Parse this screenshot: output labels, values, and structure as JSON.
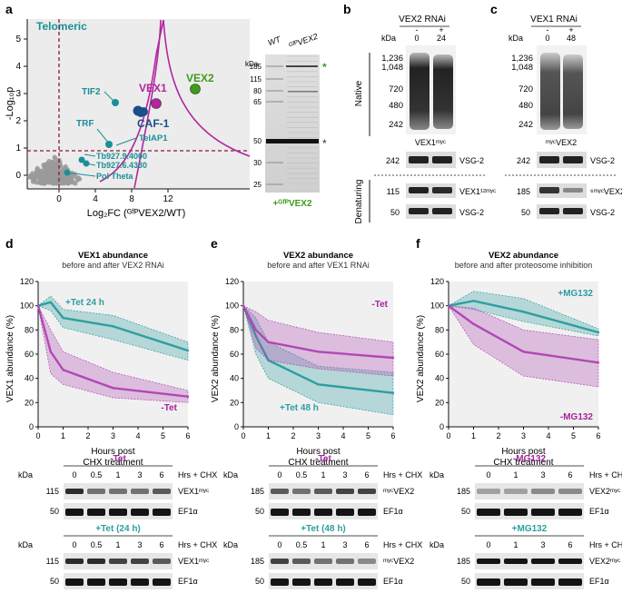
{
  "panels": {
    "a": "a",
    "b": "b",
    "c": "c",
    "d": "d",
    "e": "e",
    "f": "f"
  },
  "volcano": {
    "corner_label": "Telomeric",
    "ylabel": "-Log₁₀p",
    "xlabel": "Log₂FC (ᴳᶠᴾVEX2/WT)",
    "yticks": [
      "0",
      "1",
      "2",
      "3",
      "4",
      "5"
    ],
    "xticks": [
      "0",
      "4",
      "8",
      "12"
    ],
    "labels": {
      "vex1": "VEX1",
      "vex2": "VEX2",
      "caf1": "CAF-1",
      "tif2": "TIF2",
      "trf": "TRF",
      "telap1": "TelAP1",
      "tb4000": "Tb927.9.4000",
      "tb4330": "Tb927.6.4330",
      "polt": "Pol Theta"
    },
    "colors": {
      "teal": "#1a8f96",
      "purple": "#b0279f",
      "green": "#3f9b1a",
      "blue": "#1a4f8a",
      "grey": "#9a9a9a",
      "panel_bg": "#ececec",
      "red": "#8b1a3b"
    }
  },
  "gel": {
    "lane_wt": "WT",
    "lane_vex2": "ᴳᶠᴾVEX2",
    "kda": "kDa",
    "markers": [
      "185",
      "115",
      "80",
      "65",
      "50",
      "30",
      "25"
    ],
    "star1": "*",
    "star2": "*",
    "caption": "+ᴳᶠᴾVEX2"
  },
  "panel_b": {
    "title": "VEX2 RNAi",
    "kda": "kDa",
    "lane1_sign": "-",
    "lane1_time": "0",
    "lane2_sign": "+",
    "lane2_time": "24",
    "markers": [
      "1,236",
      "1,048",
      "720",
      "480",
      "242"
    ],
    "native": "Native",
    "denaturing": "Denaturing",
    "sub_native": "VEX1ᵐʸᶜ",
    "native_marker": "242",
    "native_band": "VSG-2",
    "den_marker1": "115",
    "den_band1": "VEX1¹²ᵐʸᶜ",
    "den_marker2": "50",
    "den_band2": "VSG-2"
  },
  "panel_c": {
    "title": "VEX1 RNAi",
    "kda": "kDa",
    "lane1_sign": "-",
    "lane1_time": "0",
    "lane2_sign": "+",
    "lane2_time": "48",
    "markers": [
      "1,236",
      "1,048",
      "720",
      "480",
      "242"
    ],
    "sub_native": "ᵐʸᶜVEX2",
    "native_marker": "242",
    "native_band": "VSG-2",
    "den_marker1": "185",
    "den_band1": "⁶ᵐʸᶜVEX2",
    "den_marker2": "50",
    "den_band2": "VSG-2"
  },
  "chart_data": [
    {
      "type": "line",
      "title": "VEX1 abundance",
      "subtitle": "before and after VEX2 RNAi",
      "xlabel": "Hours post CHX treatment",
      "xlabel1": "Hours post",
      "xlabel2": "CHX treatment",
      "ylabel": "VEX1 abundance (%)",
      "ylim": [
        0,
        120
      ],
      "xlim": [
        0,
        6
      ],
      "yticks": [
        "0",
        "20",
        "40",
        "60",
        "80",
        "100",
        "120"
      ],
      "xticks": [
        "0",
        "1",
        "2",
        "3",
        "4",
        "5",
        "6"
      ],
      "series": [
        {
          "name": "+Tet 24 h",
          "color": "#2e9ea0",
          "x": [
            0,
            0.5,
            1,
            3,
            6
          ],
          "values": [
            100,
            103,
            90,
            83,
            63
          ],
          "lower": [
            100,
            96,
            82,
            72,
            55
          ],
          "upper": [
            100,
            108,
            97,
            92,
            70
          ]
        },
        {
          "name": "-Tet",
          "color": "#b148b4",
          "x": [
            0,
            0.5,
            1,
            3,
            6
          ],
          "values": [
            100,
            62,
            47,
            32,
            25
          ],
          "lower": [
            100,
            44,
            35,
            24,
            20
          ],
          "upper": [
            100,
            80,
            62,
            45,
            30
          ]
        }
      ]
    },
    {
      "type": "line",
      "title": "VEX2 abundance",
      "subtitle": "before and after VEX1 RNAi",
      "xlabel": "Hours post CHX treatment",
      "xlabel1": "Hours post",
      "xlabel2": "CHX treatment",
      "ylabel": "VEX2 abundance (%)",
      "ylim": [
        0,
        120
      ],
      "xlim": [
        0,
        6
      ],
      "yticks": [
        "0",
        "20",
        "40",
        "60",
        "80",
        "100",
        "120"
      ],
      "xticks": [
        "0",
        "1",
        "2",
        "3",
        "4",
        "5",
        "6"
      ],
      "series": [
        {
          "name": "+Tet 48 h",
          "color": "#2e9ea0",
          "x": [
            0,
            0.5,
            1,
            3,
            6
          ],
          "values": [
            100,
            75,
            55,
            35,
            28
          ],
          "lower": [
            100,
            60,
            40,
            20,
            10
          ],
          "upper": [
            100,
            90,
            70,
            50,
            45
          ]
        },
        {
          "name": "-Tet",
          "color": "#b148b4",
          "x": [
            0,
            0.5,
            1,
            3,
            6
          ],
          "values": [
            100,
            80,
            70,
            62,
            57
          ],
          "lower": [
            100,
            65,
            55,
            48,
            42
          ],
          "upper": [
            100,
            95,
            88,
            78,
            70
          ]
        }
      ]
    },
    {
      "type": "line",
      "title": "VEX2 abundance",
      "subtitle": "before and after proteosome inhibition",
      "xlabel": "Hours post CHX treatment",
      "xlabel1": "Hours post",
      "xlabel2": "CHX treatment",
      "ylabel": "VEX2 abundance (%)",
      "ylim": [
        0,
        120
      ],
      "xlim": [
        0,
        6
      ],
      "yticks": [
        "0",
        "20",
        "40",
        "60",
        "80",
        "100",
        "120"
      ],
      "xticks": [
        "0",
        "1",
        "2",
        "3",
        "4",
        "5",
        "6"
      ],
      "series": [
        {
          "name": "+MG132",
          "color": "#2e9ea0",
          "x": [
            0,
            1,
            3,
            6
          ],
          "values": [
            100,
            104,
            95,
            78
          ],
          "lower": [
            100,
            97,
            87,
            75
          ],
          "upper": [
            100,
            112,
            106,
            81
          ]
        },
        {
          "name": "-MG132",
          "color": "#b148b4",
          "x": [
            0,
            1,
            3,
            6
          ],
          "values": [
            100,
            85,
            62,
            53
          ],
          "lower": [
            100,
            68,
            42,
            33
          ],
          "upper": [
            100,
            98,
            80,
            72
          ]
        }
      ]
    }
  ],
  "blots": {
    "d": {
      "top": {
        "label": "-Tet",
        "kda": "kDa",
        "lanes": [
          "0",
          "0.5",
          "1",
          "3",
          "6"
        ],
        "hrs": "Hrs + CHX",
        "m1": "115",
        "m2": "50",
        "band1": "VEX1ᵐʸᶜ",
        "band2": "EF1α"
      },
      "bottom": {
        "label": "+Tet (24 h)",
        "kda": "kDa",
        "lanes": [
          "0",
          "0.5",
          "1",
          "3",
          "6"
        ],
        "hrs": "Hrs + CHX",
        "m1": "115",
        "m2": "50",
        "band1": "VEX1ᵐʸᶜ",
        "band2": "EF1α"
      }
    },
    "e": {
      "top": {
        "label": "-Tet",
        "kda": "kDa",
        "lanes": [
          "0",
          "0.5",
          "1",
          "3",
          "6"
        ],
        "hrs": "Hrs + CHX",
        "m1": "185",
        "m2": "50",
        "band1": "ᵐʸᶜVEX2",
        "band2": "EF1α"
      },
      "bottom": {
        "label": "+Tet (48 h)",
        "kda": "kDa",
        "lanes": [
          "0",
          "0.5",
          "1",
          "3",
          "6"
        ],
        "hrs": "Hrs + CHX",
        "m1": "185",
        "m2": "50",
        "band1": "ᵐʸᶜVEX2",
        "band2": "EF1α"
      }
    },
    "f": {
      "top": {
        "label": "-MG132",
        "kda": "kDa",
        "lanes": [
          "0",
          "1",
          "3",
          "6"
        ],
        "hrs": "Hrs + CHX",
        "m1": "185",
        "m2": "50",
        "band1": "VEX2ᵐʸᶜ",
        "band2": "EF1α"
      },
      "bottom": {
        "label": "+MG132",
        "kda": "kDa",
        "lanes": [
          "0",
          "1",
          "3",
          "6"
        ],
        "hrs": "Hrs + CHX",
        "m1": "185",
        "m2": "50",
        "band1": "VEX2ᵐʸᶜ",
        "band2": "EF1α"
      }
    }
  }
}
